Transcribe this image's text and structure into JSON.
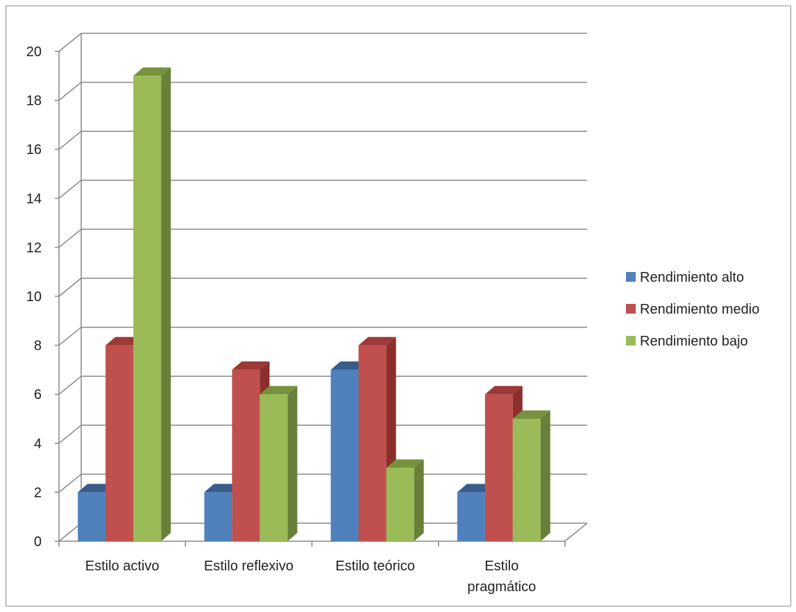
{
  "chart_data": {
    "type": "bar",
    "style": "3d-clustered-column",
    "categories": [
      "Estilo activo",
      "Estilo reflexivo",
      "Estilo teórico",
      "Estilo pragmático"
    ],
    "category_lines": [
      [
        "Estilo activo"
      ],
      [
        "Estilo reflexivo"
      ],
      [
        "Estilo teórico"
      ],
      [
        "Estilo",
        "pragmático"
      ]
    ],
    "series": [
      {
        "name": "Rendimiento alto",
        "values": [
          2,
          2,
          7,
          2
        ],
        "color": "#4F81BD",
        "side": "#2F5688",
        "top": "#385D8A"
      },
      {
        "name": "Rendimiento medio",
        "values": [
          8,
          7,
          8,
          6
        ],
        "color": "#C0504D",
        "side": "#8C2E2B",
        "top": "#9B3A37"
      },
      {
        "name": "Rendimiento bajo",
        "values": [
          19,
          6,
          3,
          5
        ],
        "color": "#9BBB59",
        "side": "#68803A",
        "top": "#76923C"
      }
    ],
    "yticks": [
      0,
      2,
      4,
      6,
      8,
      10,
      12,
      14,
      16,
      18,
      20
    ],
    "ylim": [
      0,
      20
    ],
    "title": "",
    "xlabel": "",
    "ylabel": "",
    "grid": true,
    "legend_position": "right"
  }
}
